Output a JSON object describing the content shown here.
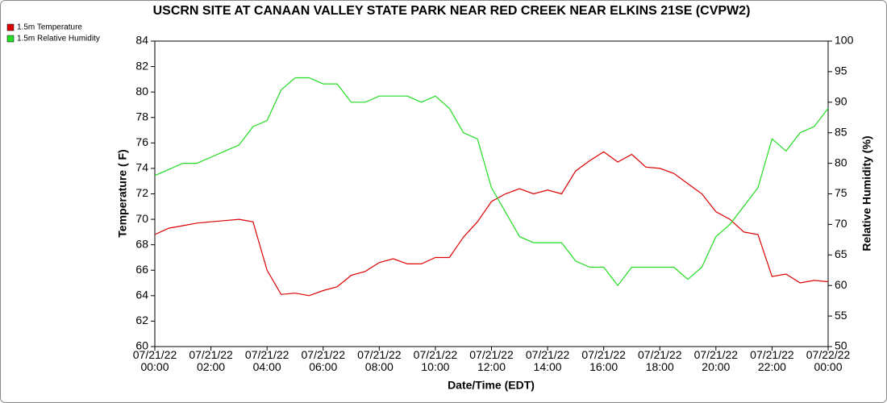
{
  "chart_data": {
    "type": "line",
    "title": "USCRN SITE AT CANAAN VALLEY STATE PARK NEAR RED CREEK NEAR ELKINS 21SE (CVPW2)",
    "x_label": "Date/Time (EDT)",
    "y_label": "Temperature ( F)",
    "y2_label": "Relative Humidity (%)",
    "x": [
      "07/21/22 00:00",
      "07/21/22 00:30",
      "07/21/22 01:00",
      "07/21/22 01:30",
      "07/21/22 02:00",
      "07/21/22 02:30",
      "07/21/22 03:00",
      "07/21/22 03:30",
      "07/21/22 04:00",
      "07/21/22 04:30",
      "07/21/22 05:00",
      "07/21/22 05:30",
      "07/21/22 06:00",
      "07/21/22 06:30",
      "07/21/22 07:00",
      "07/21/22 07:30",
      "07/21/22 08:00",
      "07/21/22 08:30",
      "07/21/22 09:00",
      "07/21/22 09:30",
      "07/21/22 10:00",
      "07/21/22 10:30",
      "07/21/22 11:00",
      "07/21/22 11:30",
      "07/21/22 12:00",
      "07/21/22 12:30",
      "07/21/22 13:00",
      "07/21/22 13:30",
      "07/21/22 14:00",
      "07/21/22 14:30",
      "07/21/22 15:00",
      "07/21/22 15:30",
      "07/21/22 16:00",
      "07/21/22 16:30",
      "07/21/22 17:00",
      "07/21/22 17:30",
      "07/21/22 18:00",
      "07/21/22 18:30",
      "07/21/22 19:00",
      "07/21/22 19:30",
      "07/21/22 20:00",
      "07/21/22 20:30",
      "07/21/22 21:00",
      "07/21/22 21:30",
      "07/21/22 22:00",
      "07/21/22 22:30",
      "07/21/22 23:00",
      "07/21/22 23:30",
      "07/22/22 00:00"
    ],
    "series": [
      {
        "name": "1.5m Temperature",
        "color": "#dd0000",
        "values": [
          68.8,
          69.3,
          69.5,
          69.7,
          69.8,
          69.9,
          70.0,
          69.8,
          66.0,
          64.1,
          64.2,
          64.0,
          64.4,
          64.7,
          65.6,
          65.9,
          66.6,
          66.9,
          66.5,
          66.5,
          67.0,
          67.0,
          68.6,
          69.8,
          71.4,
          72.0,
          72.4,
          72.0,
          72.3,
          72.0,
          73.8,
          74.6,
          75.3,
          74.5,
          75.1,
          74.1,
          74.0,
          73.6,
          72.8,
          72.0,
          70.6,
          70.0,
          69.0,
          68.8,
          65.5,
          65.7,
          65.0,
          65.2,
          65.1
        ]
      },
      {
        "name": "1.5m Relative Humidity",
        "color": "#22dd22",
        "axis": "y2",
        "values": [
          78,
          79,
          80,
          80,
          81,
          82,
          83,
          86,
          87,
          92,
          94,
          94,
          93,
          93,
          90,
          90,
          91,
          91,
          91,
          90,
          91,
          89,
          85,
          84,
          76,
          72,
          68,
          67,
          67,
          67,
          64,
          63,
          63,
          60,
          63,
          63,
          63,
          63,
          61,
          63,
          68,
          70,
          73,
          76,
          84,
          82,
          85,
          86,
          89
        ]
      }
    ],
    "xlim": [
      "07/21/22 00:00",
      "07/22/22 00:00"
    ],
    "xticks": [
      "07/21/22 00:00",
      "07/21/22 02:00",
      "07/21/22 04:00",
      "07/21/22 06:00",
      "07/21/22 08:00",
      "07/21/22 10:00",
      "07/21/22 12:00",
      "07/21/22 14:00",
      "07/21/22 16:00",
      "07/21/22 18:00",
      "07/21/22 20:00",
      "07/21/22 22:00",
      "07/22/22 00:00"
    ],
    "ylim": [
      60,
      84
    ],
    "yticks": [
      60,
      62,
      64,
      66,
      68,
      70,
      72,
      74,
      76,
      78,
      80,
      82,
      84
    ],
    "y2lim": [
      50,
      100
    ],
    "y2ticks": [
      50,
      55,
      60,
      65,
      70,
      75,
      80,
      85,
      90,
      95,
      100
    ],
    "legend": "top-left"
  }
}
